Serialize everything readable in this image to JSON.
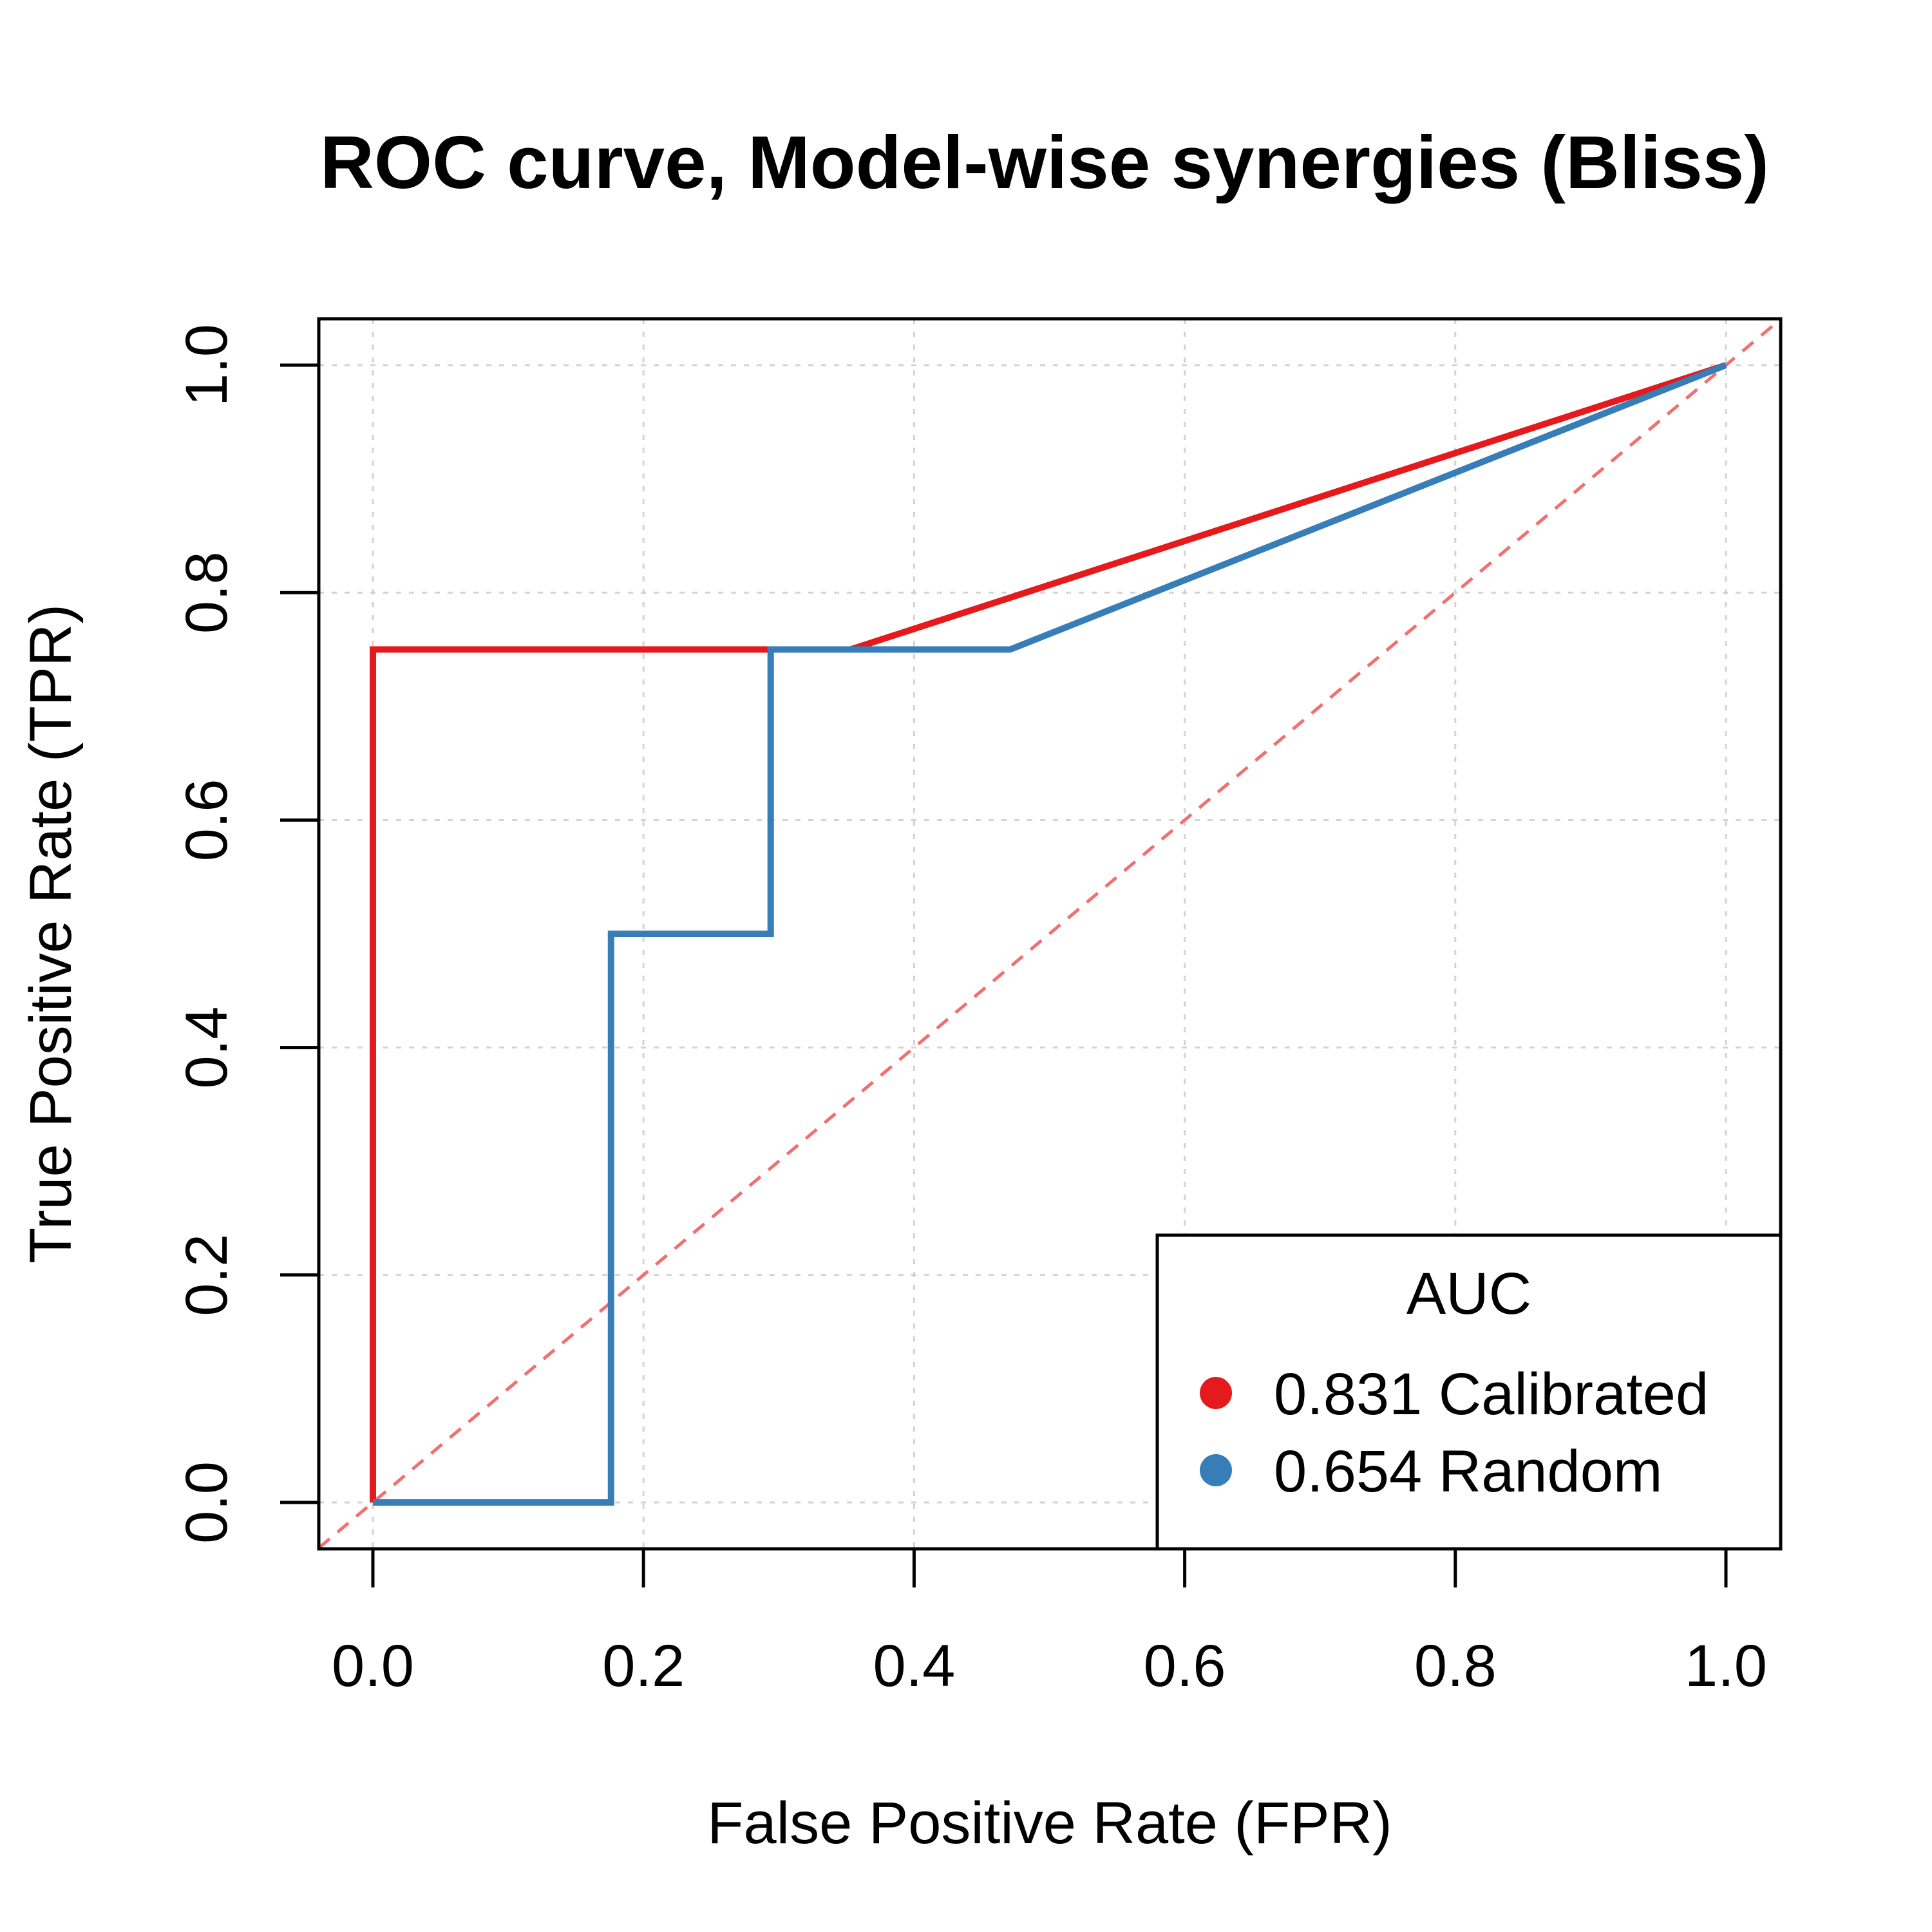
{
  "chart_data": {
    "type": "line",
    "title": "ROC curve, Model-wise synergies (Bliss)",
    "xlabel": "False Positive Rate (FPR)",
    "ylabel": "True Positive Rate (TPR)",
    "xlim": [
      0,
      1
    ],
    "ylim": [
      0,
      1
    ],
    "xticks": [
      0.0,
      0.2,
      0.4,
      0.6,
      0.8,
      1.0
    ],
    "yticks": [
      0.0,
      0.2,
      0.4,
      0.6,
      0.8,
      1.0
    ],
    "xtick_labels": [
      "0.0",
      "0.2",
      "0.4",
      "0.6",
      "0.8",
      "1.0"
    ],
    "ytick_labels": [
      "0.0",
      "0.2",
      "0.4",
      "0.6",
      "0.8",
      "1.0"
    ],
    "grid": true,
    "reference_line": {
      "x": [
        0,
        1
      ],
      "y": [
        0,
        1
      ],
      "style": "dashed",
      "color": "#f07070"
    },
    "legend": {
      "title": "AUC",
      "position": "bottom-right",
      "entries": [
        {
          "label": "0.831 Calibrated",
          "color": "#e41a1c"
        },
        {
          "label": "0.654 Random",
          "color": "#377eb8"
        }
      ]
    },
    "series": [
      {
        "name": "0.831 Calibrated",
        "color": "#e41a1c",
        "x": [
          0,
          0,
          0.353,
          1
        ],
        "y": [
          0,
          0.75,
          0.75,
          1
        ]
      },
      {
        "name": "0.654 Random",
        "color": "#377eb8",
        "x": [
          0,
          0.176,
          0.176,
          0.294,
          0.294,
          0.471,
          1
        ],
        "y": [
          0,
          0,
          0.5,
          0.5,
          0.75,
          0.75,
          1
        ]
      }
    ]
  }
}
